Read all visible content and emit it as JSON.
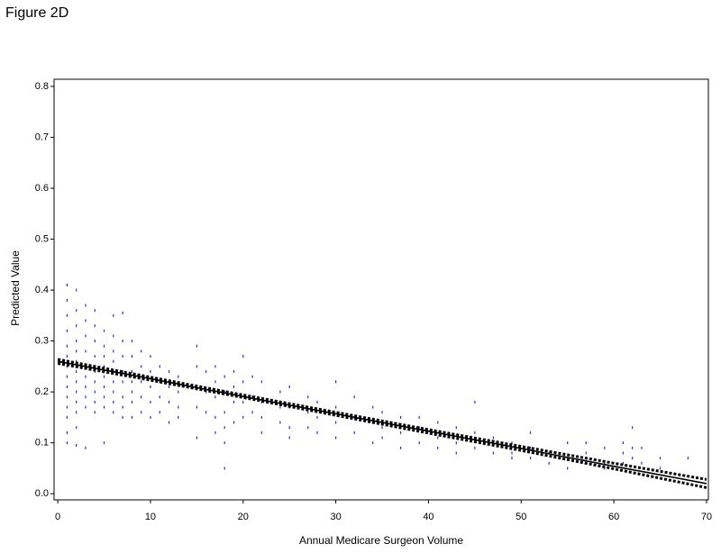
{
  "chart_data": {
    "type": "scatter",
    "title": "Figure 2D",
    "x_label": "Annual Medicare Surgeon Volume",
    "y_label": "Predicted Value",
    "xlim": [
      -0.4,
      70.2
    ],
    "ylim": [
      -0.012,
      0.814
    ],
    "xticks": [
      0,
      10,
      20,
      30,
      40,
      50,
      60,
      70
    ],
    "yticks": [
      {
        "value": 0,
        "label": "0.0"
      },
      0.1,
      0.2,
      0.3,
      0.4,
      0.5,
      0.6,
      0.7,
      0.8
    ],
    "series": [
      {
        "mode": "markers",
        "color": "#2a2ae0",
        "x": [
          1,
          1,
          1,
          1,
          1,
          1,
          1,
          1,
          1,
          1,
          1,
          1,
          1,
          1,
          2,
          2,
          2,
          2,
          2,
          2,
          2,
          2,
          2,
          2,
          2,
          2,
          2,
          3,
          3,
          3,
          3,
          3,
          3,
          3,
          3,
          3,
          3,
          4,
          4,
          4,
          4,
          4,
          4,
          4,
          4,
          4,
          5,
          5,
          5,
          5,
          5,
          5,
          5,
          5,
          5,
          6,
          6,
          6,
          6,
          6,
          6,
          6,
          6,
          6,
          7,
          7,
          7,
          7,
          7,
          7,
          7,
          7,
          8,
          8,
          8,
          8,
          8,
          8,
          8,
          9,
          9,
          9,
          9,
          9,
          10,
          10,
          10,
          10,
          10,
          11,
          11,
          11,
          11,
          12,
          12,
          12,
          12,
          13,
          13,
          13,
          13,
          15,
          15,
          15,
          15,
          15,
          16,
          16,
          16,
          17,
          17,
          17,
          17,
          17,
          18,
          18,
          18,
          18,
          18,
          18,
          19,
          19,
          19,
          19,
          20,
          20,
          20,
          20,
          21,
          21,
          21,
          22,
          22,
          22,
          22,
          24,
          24,
          24,
          25,
          25,
          25,
          25,
          27,
          27,
          27,
          28,
          28,
          28,
          30,
          30,
          30,
          30,
          32,
          32,
          32,
          34,
          34,
          34,
          35,
          35,
          35,
          37,
          37,
          37,
          39,
          39,
          39,
          41,
          41,
          41,
          43,
          43,
          43,
          45,
          45,
          45,
          47,
          47,
          49,
          49,
          49,
          51,
          51,
          51,
          53,
          53,
          55,
          55,
          55,
          57,
          57,
          57,
          59,
          59,
          59,
          61,
          61,
          61,
          62,
          62,
          62,
          63,
          63,
          65,
          65,
          68
        ],
        "values": [
          0.41,
          0.38,
          0.35,
          0.32,
          0.29,
          0.27,
          0.25,
          0.23,
          0.21,
          0.19,
          0.17,
          0.15,
          0.12,
          0.1,
          0.4,
          0.36,
          0.33,
          0.3,
          0.28,
          0.26,
          0.24,
          0.22,
          0.2,
          0.18,
          0.16,
          0.13,
          0.095,
          0.37,
          0.34,
          0.31,
          0.28,
          0.25,
          0.23,
          0.21,
          0.19,
          0.17,
          0.09,
          0.36,
          0.33,
          0.3,
          0.27,
          0.24,
          0.22,
          0.2,
          0.18,
          0.16,
          0.32,
          0.29,
          0.27,
          0.25,
          0.23,
          0.21,
          0.19,
          0.17,
          0.1,
          0.35,
          0.31,
          0.28,
          0.26,
          0.24,
          0.22,
          0.2,
          0.18,
          0.16,
          0.355,
          0.3,
          0.27,
          0.24,
          0.22,
          0.19,
          0.17,
          0.15,
          0.3,
          0.27,
          0.24,
          0.22,
          0.2,
          0.18,
          0.15,
          0.28,
          0.25,
          0.22,
          0.19,
          0.16,
          0.27,
          0.24,
          0.21,
          0.18,
          0.15,
          0.25,
          0.22,
          0.19,
          0.16,
          0.24,
          0.21,
          0.18,
          0.14,
          0.23,
          0.2,
          0.17,
          0.15,
          0.29,
          0.25,
          0.21,
          0.17,
          0.11,
          0.24,
          0.2,
          0.16,
          0.25,
          0.22,
          0.19,
          0.15,
          0.12,
          0.23,
          0.2,
          0.16,
          0.13,
          0.1,
          0.05,
          0.24,
          0.21,
          0.18,
          0.14,
          0.27,
          0.22,
          0.18,
          0.15,
          0.23,
          0.19,
          0.16,
          0.22,
          0.18,
          0.15,
          0.12,
          0.2,
          0.17,
          0.14,
          0.21,
          0.17,
          0.13,
          0.11,
          0.19,
          0.16,
          0.13,
          0.18,
          0.15,
          0.12,
          0.22,
          0.17,
          0.14,
          0.11,
          0.19,
          0.15,
          0.12,
          0.17,
          0.14,
          0.1,
          0.16,
          0.13,
          0.11,
          0.15,
          0.12,
          0.09,
          0.15,
          0.13,
          0.1,
          0.14,
          0.11,
          0.09,
          0.13,
          0.1,
          0.08,
          0.18,
          0.12,
          0.09,
          0.11,
          0.08,
          0.1,
          0.08,
          0.07,
          0.12,
          0.09,
          0.07,
          0.08,
          0.06,
          0.1,
          0.07,
          0.05,
          0.1,
          0.08,
          0.06,
          0.09,
          0.06,
          0.05,
          0.1,
          0.08,
          0.06,
          0.13,
          0.09,
          0.07,
          0.09,
          0.06,
          0.07,
          0.05,
          0.07
        ]
      },
      {
        "mode": "line",
        "color": "#000000",
        "dash": false,
        "x": [
          0,
          10,
          20,
          30,
          40,
          50,
          60,
          70
        ],
        "values": [
          0.26,
          0.226,
          0.191,
          0.157,
          0.123,
          0.089,
          0.054,
          0.02
        ]
      },
      {
        "mode": "line",
        "color": "#000000",
        "dash": true,
        "x": [
          0,
          10,
          20,
          30,
          40,
          50,
          60,
          70
        ],
        "values": [
          0.264,
          0.229,
          0.194,
          0.16,
          0.126,
          0.093,
          0.06,
          0.028
        ]
      },
      {
        "mode": "line",
        "color": "#000000",
        "dash": true,
        "x": [
          0,
          10,
          20,
          30,
          40,
          50,
          60,
          70
        ],
        "values": [
          0.256,
          0.223,
          0.189,
          0.154,
          0.119,
          0.085,
          0.049,
          0.012
        ]
      }
    ]
  }
}
